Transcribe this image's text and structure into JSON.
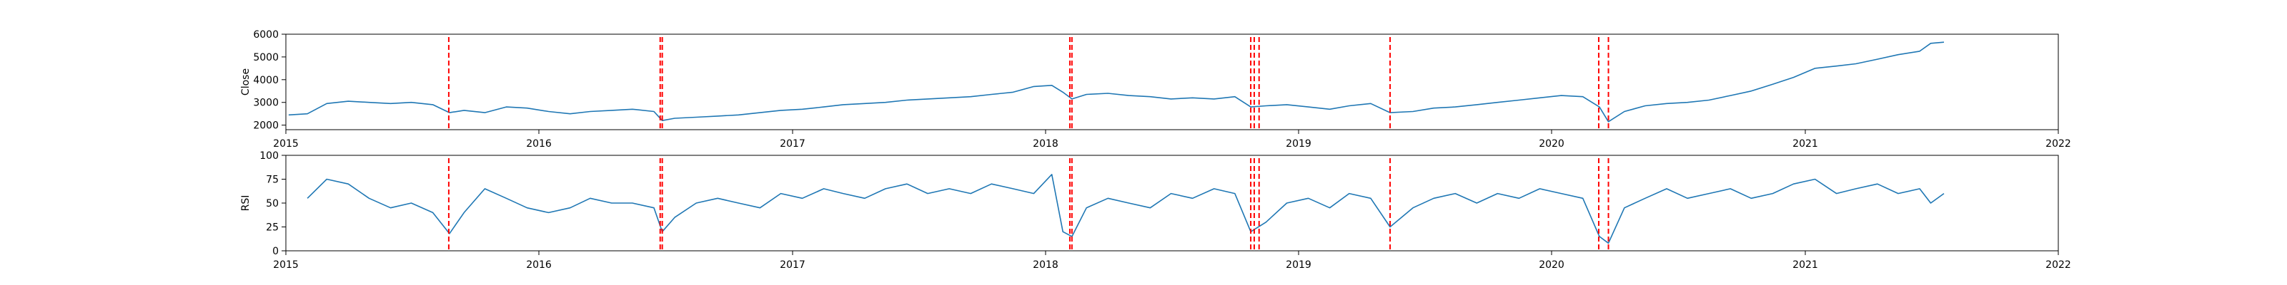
{
  "chart_data": [
    {
      "type": "line",
      "ylabel": "Close",
      "xlim": [
        "2015-01-01",
        "2022-01-01"
      ],
      "ylim": [
        1800,
        6000
      ],
      "yticks": [
        2000,
        3000,
        4000,
        5000,
        6000
      ],
      "xtick_labels": [
        "2015",
        "2016",
        "2017",
        "2018",
        "2019",
        "2020",
        "2021",
        "2022"
      ],
      "grid": false,
      "series": [
        {
          "color": "#1f77b4",
          "x": [
            "2015-01-05",
            "2015-02-01",
            "2015-03-01",
            "2015-04-01",
            "2015-05-01",
            "2015-06-01",
            "2015-07-01",
            "2015-08-01",
            "2015-08-25",
            "2015-09-15",
            "2015-10-15",
            "2015-11-15",
            "2015-12-15",
            "2016-01-15",
            "2016-02-15",
            "2016-03-15",
            "2016-04-15",
            "2016-05-15",
            "2016-06-15",
            "2016-06-27",
            "2016-07-15",
            "2016-08-15",
            "2016-09-15",
            "2016-10-15",
            "2016-11-15",
            "2016-12-15",
            "2017-01-15",
            "2017-02-15",
            "2017-03-15",
            "2017-04-15",
            "2017-05-15",
            "2017-06-15",
            "2017-07-15",
            "2017-08-15",
            "2017-09-15",
            "2017-10-15",
            "2017-11-15",
            "2017-12-15",
            "2018-01-10",
            "2018-01-26",
            "2018-02-08",
            "2018-03-01",
            "2018-04-01",
            "2018-05-01",
            "2018-06-01",
            "2018-07-01",
            "2018-08-01",
            "2018-09-01",
            "2018-10-01",
            "2018-10-24",
            "2018-11-15",
            "2018-12-15",
            "2019-01-15",
            "2019-02-15",
            "2019-03-15",
            "2019-04-15",
            "2019-05-13",
            "2019-06-15",
            "2019-07-15",
            "2019-08-15",
            "2019-09-15",
            "2019-10-15",
            "2019-11-15",
            "2019-12-15",
            "2020-01-15",
            "2020-02-15",
            "2020-03-10",
            "2020-03-23",
            "2020-04-15",
            "2020-05-15",
            "2020-06-15",
            "2020-07-15",
            "2020-08-15",
            "2020-09-15",
            "2020-10-15",
            "2020-11-15",
            "2020-12-15",
            "2021-01-15",
            "2021-02-15",
            "2021-03-15",
            "2021-04-15",
            "2021-05-15",
            "2021-06-15",
            "2021-07-01",
            "2021-07-20"
          ],
          "y": [
            2450,
            2500,
            2950,
            3050,
            3000,
            2950,
            3000,
            2900,
            2550,
            2650,
            2550,
            2800,
            2750,
            2600,
            2500,
            2600,
            2650,
            2700,
            2600,
            2200,
            2300,
            2350,
            2400,
            2450,
            2550,
            2650,
            2700,
            2800,
            2900,
            2950,
            3000,
            3100,
            3150,
            3200,
            3250,
            3350,
            3450,
            3700,
            3750,
            3450,
            3150,
            3350,
            3400,
            3300,
            3250,
            3150,
            3200,
            3150,
            3250,
            2800,
            2850,
            2900,
            2800,
            2700,
            2850,
            2950,
            2550,
            2600,
            2750,
            2800,
            2900,
            3000,
            3100,
            3200,
            3300,
            3250,
            2800,
            2150,
            2600,
            2850,
            2950,
            3000,
            3100,
            3300,
            3500,
            3800,
            4100,
            4500,
            4600,
            4700,
            4900,
            5100,
            5250,
            5600,
            5650
          ]
        }
      ]
    },
    {
      "type": "line",
      "ylabel": "RSI",
      "xlim": [
        "2015-01-01",
        "2022-01-01"
      ],
      "ylim": [
        0,
        100
      ],
      "yticks": [
        0,
        25,
        50,
        75,
        100
      ],
      "xtick_labels": [
        "2015",
        "2016",
        "2017",
        "2018",
        "2019",
        "2020",
        "2021",
        "2022"
      ],
      "grid": false,
      "series": [
        {
          "color": "#1f77b4",
          "x": [
            "2015-02-01",
            "2015-03-01",
            "2015-04-01",
            "2015-05-01",
            "2015-06-01",
            "2015-07-01",
            "2015-08-01",
            "2015-08-25",
            "2015-09-15",
            "2015-10-15",
            "2015-11-15",
            "2015-12-15",
            "2016-01-15",
            "2016-02-15",
            "2016-03-15",
            "2016-04-15",
            "2016-05-15",
            "2016-06-15",
            "2016-06-27",
            "2016-07-15",
            "2016-08-15",
            "2016-09-15",
            "2016-10-15",
            "2016-11-15",
            "2016-12-15",
            "2017-01-15",
            "2017-02-15",
            "2017-03-15",
            "2017-04-15",
            "2017-05-15",
            "2017-06-15",
            "2017-07-15",
            "2017-08-15",
            "2017-09-15",
            "2017-10-15",
            "2017-11-15",
            "2017-12-15",
            "2018-01-10",
            "2018-01-26",
            "2018-02-08",
            "2018-03-01",
            "2018-04-01",
            "2018-05-01",
            "2018-06-01",
            "2018-07-01",
            "2018-08-01",
            "2018-09-01",
            "2018-10-01",
            "2018-10-24",
            "2018-11-15",
            "2018-12-15",
            "2019-01-15",
            "2019-02-15",
            "2019-03-15",
            "2019-04-15",
            "2019-05-13",
            "2019-06-15",
            "2019-07-15",
            "2019-08-15",
            "2019-09-15",
            "2019-10-15",
            "2019-11-15",
            "2019-12-15",
            "2020-01-15",
            "2020-02-15",
            "2020-03-10",
            "2020-03-23",
            "2020-04-15",
            "2020-05-15",
            "2020-06-15",
            "2020-07-15",
            "2020-08-15",
            "2020-09-15",
            "2020-10-15",
            "2020-11-15",
            "2020-12-15",
            "2021-01-15",
            "2021-02-15",
            "2021-03-15",
            "2021-04-15",
            "2021-05-15",
            "2021-06-15",
            "2021-07-01",
            "2021-07-20"
          ],
          "y": [
            55,
            75,
            70,
            55,
            45,
            50,
            40,
            18,
            40,
            65,
            55,
            45,
            40,
            45,
            55,
            50,
            50,
            45,
            20,
            35,
            50,
            55,
            50,
            45,
            60,
            55,
            65,
            60,
            55,
            65,
            70,
            60,
            65,
            60,
            70,
            65,
            60,
            80,
            20,
            15,
            45,
            55,
            50,
            45,
            60,
            55,
            65,
            60,
            20,
            30,
            50,
            55,
            45,
            60,
            55,
            25,
            45,
            55,
            60,
            50,
            60,
            55,
            65,
            60,
            55,
            15,
            8,
            45,
            55,
            65,
            55,
            60,
            65,
            55,
            60,
            70,
            75,
            60,
            65,
            70,
            60,
            65,
            50,
            60
          ]
        }
      ]
    }
  ],
  "event_dates": [
    "2015-08-24",
    "2016-06-24",
    "2016-06-27",
    "2018-02-05",
    "2018-02-08",
    "2018-10-24",
    "2018-10-29",
    "2018-11-05",
    "2019-05-13",
    "2020-03-09",
    "2020-03-23"
  ],
  "colors": {
    "series": "#1f77b4",
    "events": "#ff0000",
    "axes": "#000000"
  }
}
